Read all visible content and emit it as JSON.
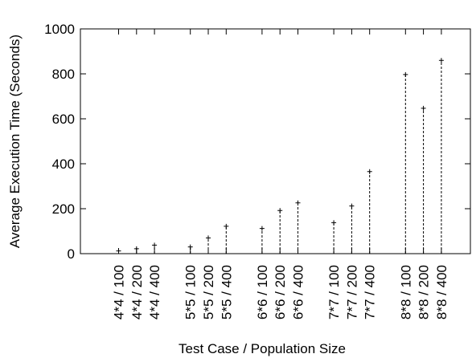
{
  "chart_data": {
    "type": "scatter",
    "style": "impulses",
    "title": "",
    "xlabel": "Test Case / Population Size",
    "ylabel": "Average Execution Time (Seconds)",
    "ylim": [
      0,
      1000
    ],
    "yticks": [
      0,
      200,
      400,
      600,
      800,
      1000
    ],
    "grid": false,
    "legend": "none",
    "categories": [
      "4*4 / 100",
      "4*4 / 200",
      "4*4 / 400",
      "5*5 / 100",
      "5*5 / 200",
      "5*5 / 400",
      "6*6 / 100",
      "6*6 / 200",
      "6*6 / 400",
      "7*7 / 100",
      "7*7 / 200",
      "7*7 / 400",
      "8*8 / 100",
      "8*8 / 200",
      "8*8 / 400"
    ],
    "values": [
      12,
      22,
      38,
      30,
      70,
      122,
      112,
      192,
      226,
      138,
      212,
      365,
      797,
      647,
      860
    ]
  }
}
